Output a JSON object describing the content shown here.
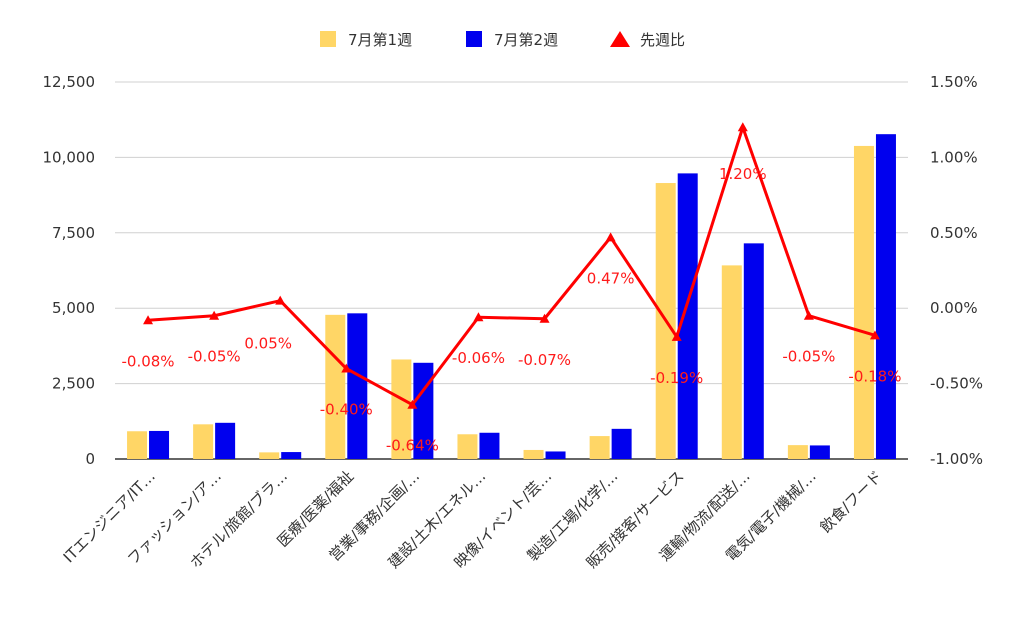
{
  "chart_data": {
    "type": "bar",
    "categories": [
      "ITエンジニア/IT…",
      "ファッション/ア…",
      "ホテル/旅館/ブラ…",
      "医療/医薬/福祉",
      "営業/事務/企画/…",
      "建設/土木/エネル…",
      "映像/イベント/芸…",
      "製造/工場/化学/…",
      "販売/接客/サービス",
      "運輸/物流/配送/…",
      "電気/電子/機械/…",
      "飲食/フード"
    ],
    "series": [
      {
        "name": "7月第1週",
        "kind": "bar",
        "axis": "left",
        "color": "#ffd666",
        "values": [
          920,
          1150,
          220,
          4780,
          3300,
          820,
          300,
          760,
          9150,
          6420,
          460,
          10380
        ]
      },
      {
        "name": "7月第2週",
        "kind": "bar",
        "axis": "left",
        "color": "#0000ee",
        "values": [
          930,
          1200,
          230,
          4830,
          3190,
          870,
          250,
          1000,
          9470,
          7150,
          450,
          10770
        ]
      },
      {
        "name": "先週比",
        "kind": "line",
        "axis": "right",
        "color": "#ff0000",
        "values": [
          -0.08,
          -0.05,
          0.05,
          -0.4,
          -0.64,
          -0.06,
          -0.07,
          0.47,
          -0.19,
          1.2,
          -0.05,
          -0.18
        ],
        "labels": [
          "-0.08%",
          "-0.05%",
          "0.05%",
          "-0.40%",
          "-0.64%",
          "-0.06%",
          "-0.07%",
          "0.47%",
          "-0.19%",
          "1.20%",
          "-0.05%",
          "-0.18%"
        ]
      }
    ],
    "y_left": {
      "lim": [
        0,
        12500
      ],
      "ticks": [
        0,
        2500,
        5000,
        7500,
        10000,
        12500
      ],
      "tick_labels": [
        "0",
        "2,500",
        "5,000",
        "7,500",
        "10,000",
        "12,500"
      ]
    },
    "y_right": {
      "lim": [
        -1.0,
        1.5
      ],
      "ticks": [
        -1.0,
        -0.5,
        0.0,
        0.5,
        1.0,
        1.5
      ],
      "tick_labels": [
        "-1.00%",
        "-0.50%",
        "0.00%",
        "0.50%",
        "1.00%",
        "1.50%"
      ]
    },
    "grid": true,
    "legend_position": "top-center",
    "title": "",
    "xlabel": "",
    "ylabel": ""
  }
}
